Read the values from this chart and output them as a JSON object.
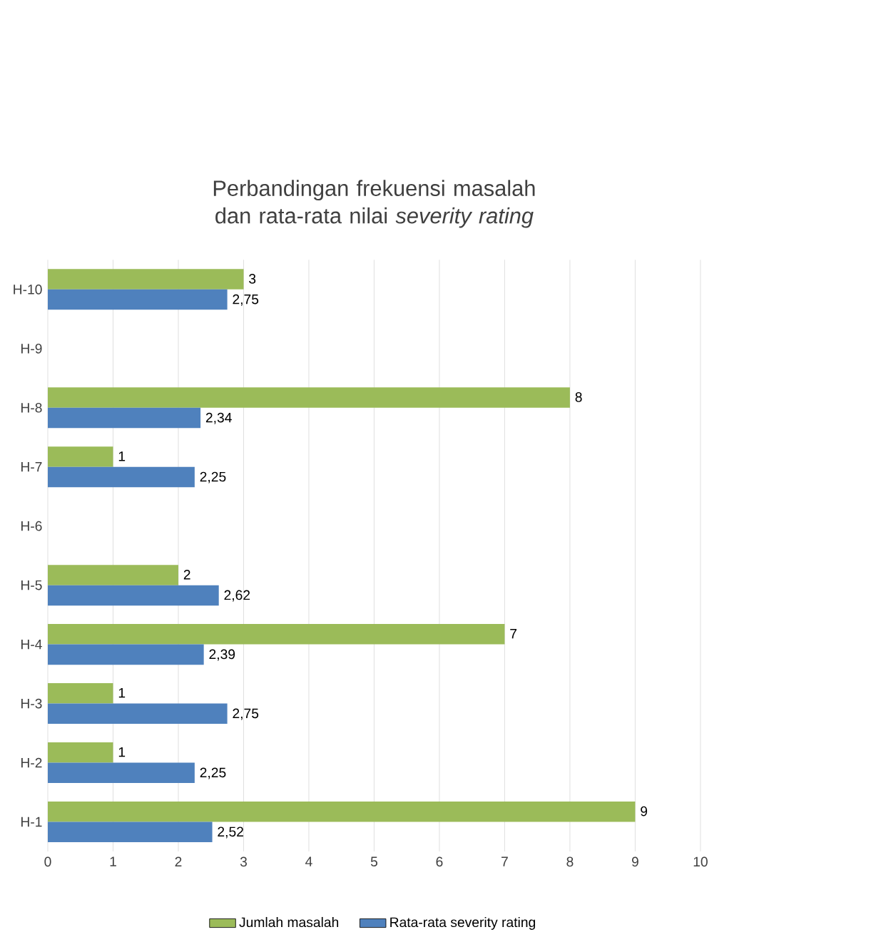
{
  "chart_data": {
    "type": "bar",
    "orientation": "horizontal",
    "title": "Perbandingan frekuensi masalah dan rata-rata nilai *severity rating*",
    "categories": [
      "H-10",
      "H-9",
      "H-8",
      "H-7",
      "H-6",
      "H-5",
      "H-4",
      "H-3",
      "H-2",
      "H-1"
    ],
    "series": [
      {
        "name": "Jumlah masalah",
        "color": "#9bbb59",
        "values": [
          3,
          null,
          8,
          1,
          null,
          2,
          7,
          1,
          1,
          9
        ],
        "value_labels": [
          "3",
          null,
          "8",
          "1",
          null,
          "2",
          "7",
          "1",
          "1",
          "9"
        ]
      },
      {
        "name": "Rata-rata severity rating",
        "color": "#4f81bd",
        "values": [
          2.75,
          null,
          2.34,
          2.25,
          null,
          2.62,
          2.39,
          2.75,
          2.25,
          2.52
        ],
        "value_labels": [
          "2,75",
          null,
          "2,34",
          "2,25",
          null,
          "2,62",
          "2,39",
          "2,75",
          "2,25",
          "2,52"
        ]
      }
    ],
    "xlim": [
      0,
      10
    ],
    "xticks": [
      0,
      1,
      2,
      3,
      4,
      5,
      6,
      7,
      8,
      9,
      10
    ],
    "grid": "x",
    "legend": "bottom"
  }
}
